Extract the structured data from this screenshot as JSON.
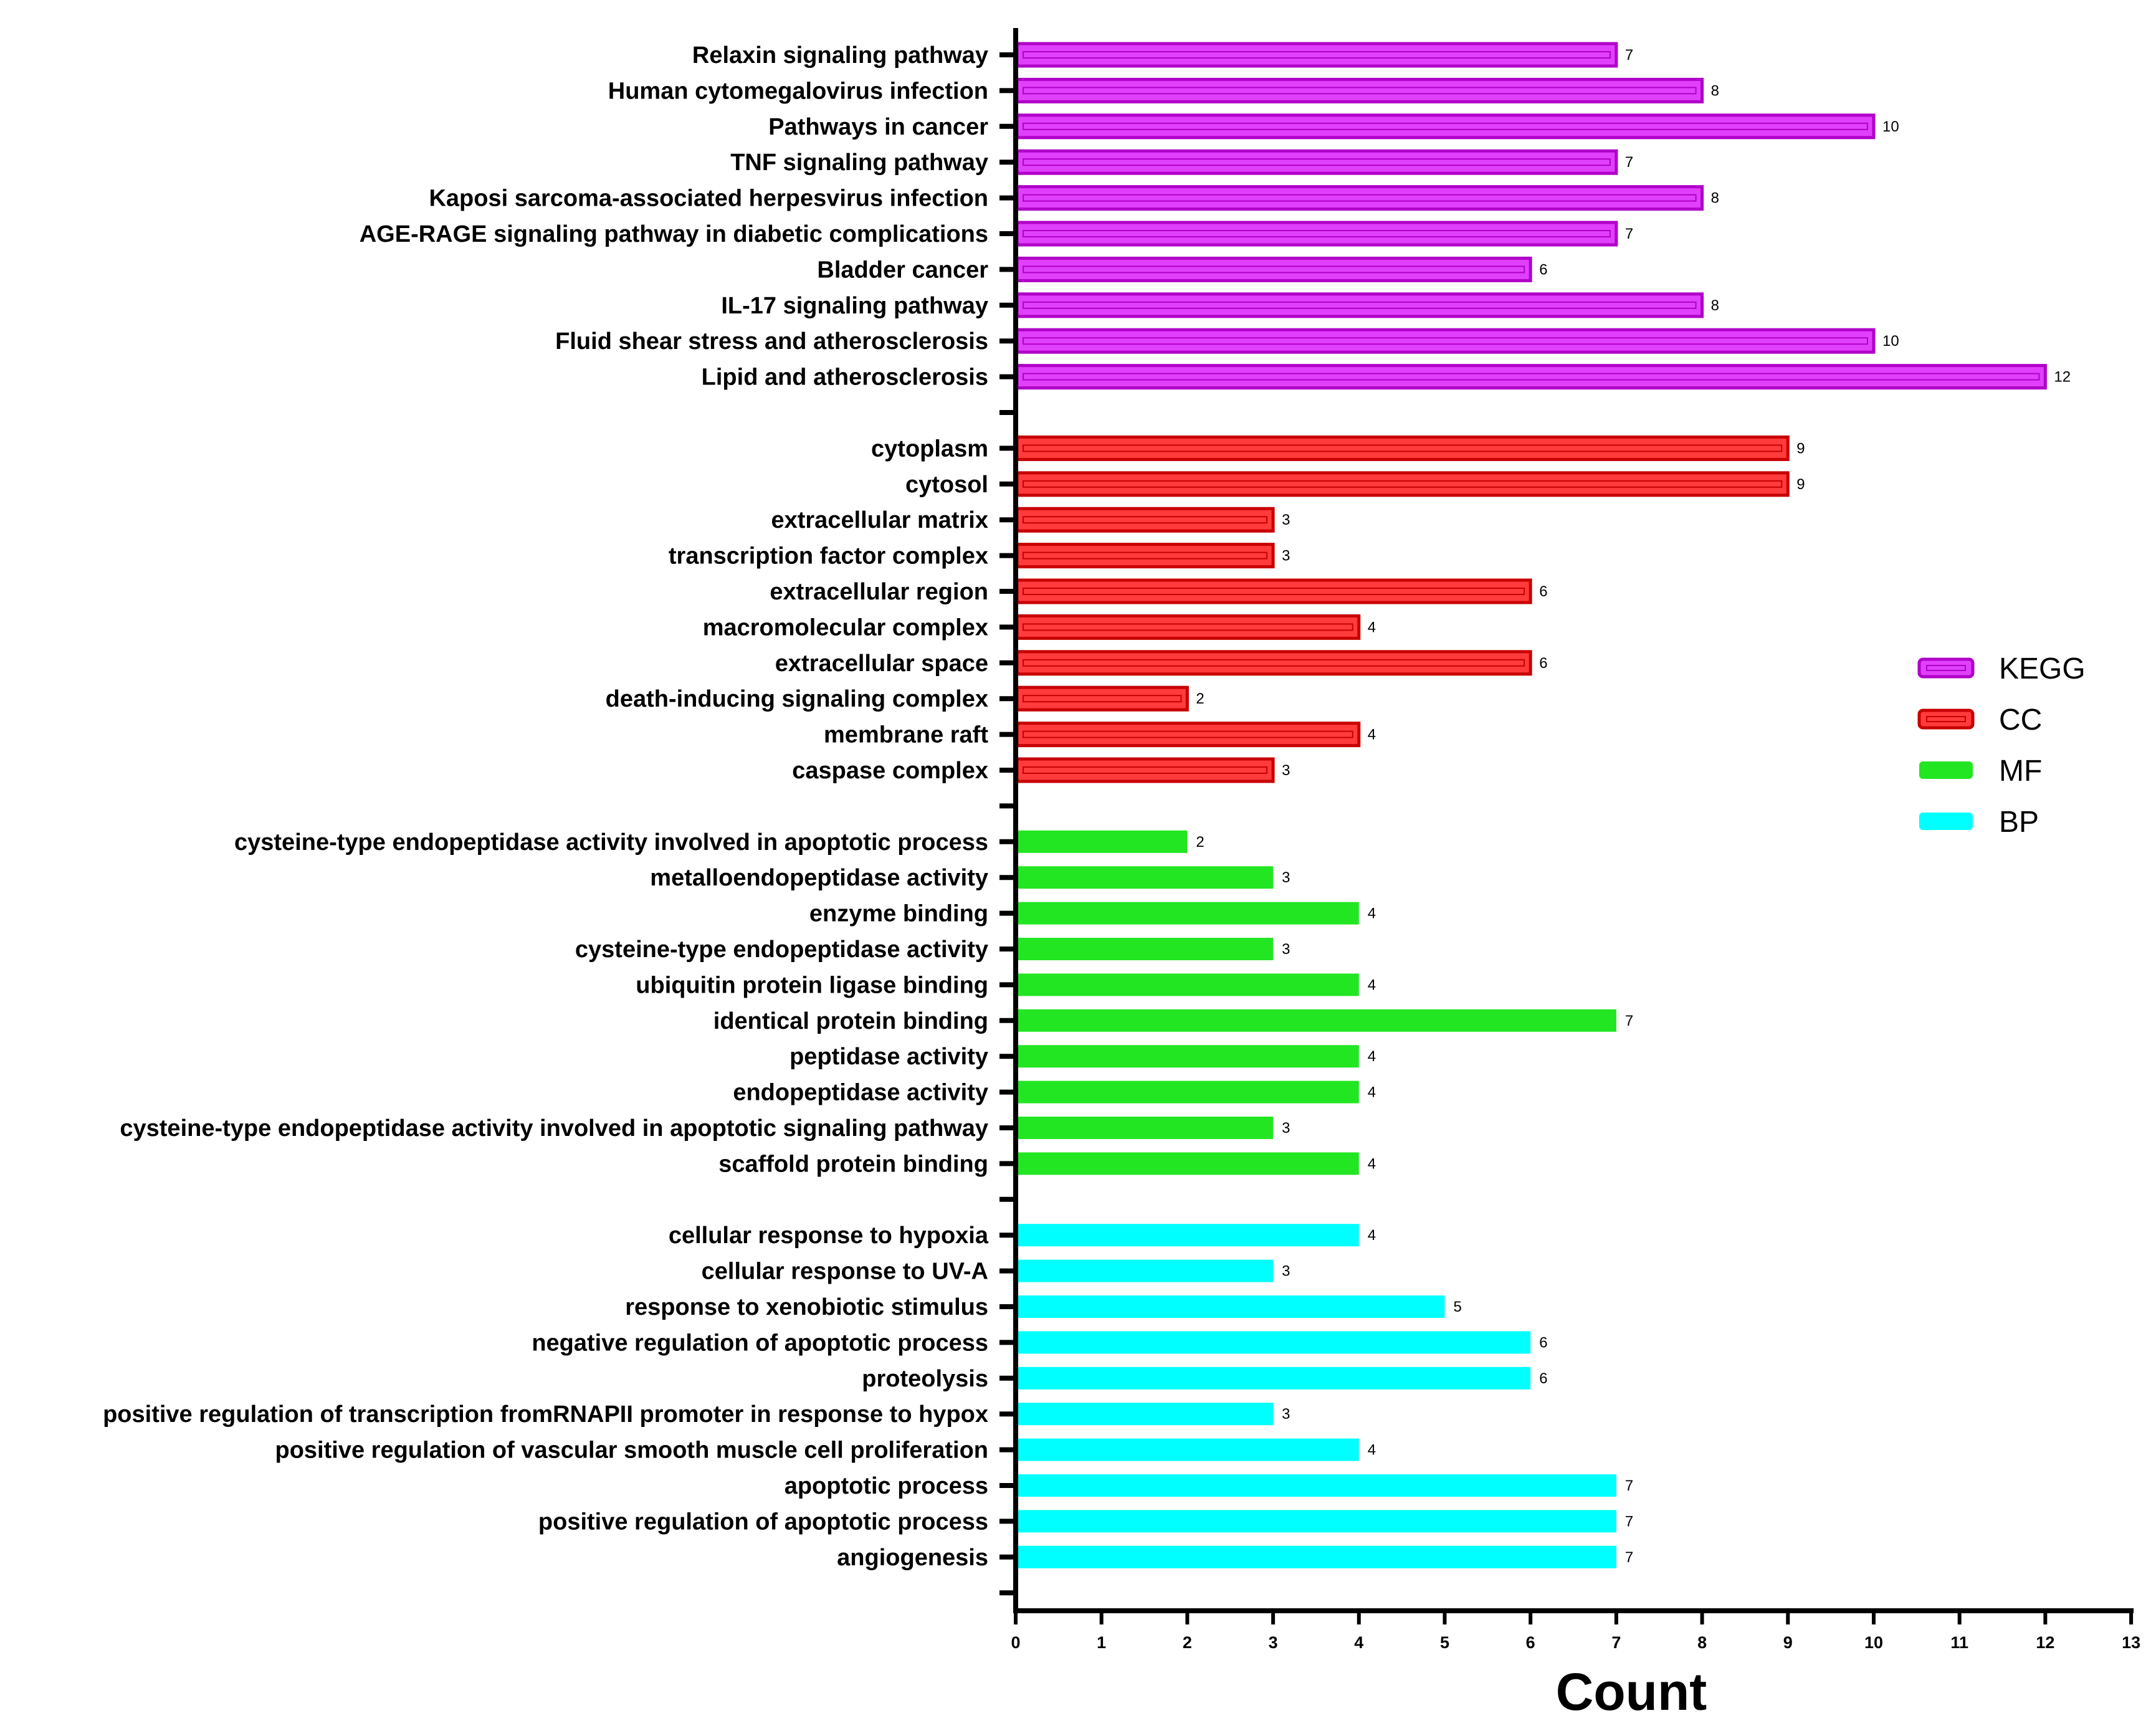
{
  "chart_data": {
    "type": "bar",
    "orientation": "horizontal",
    "xlabel": "Count",
    "xlim": [
      0,
      13
    ],
    "xticks": [
      0,
      1,
      2,
      3,
      4,
      5,
      6,
      7,
      8,
      9,
      10,
      11,
      12,
      13
    ],
    "legend_position": "right",
    "groups": [
      {
        "name": "KEGG",
        "color": "#e040fb",
        "border": "#b000c8",
        "style": "hollow",
        "categories": [
          "Relaxin signaling pathway",
          "Human cytomegalovirus infection",
          "Pathways in cancer",
          "TNF signaling pathway",
          "Kaposi sarcoma-associated herpesvirus infection",
          "AGE-RAGE signaling pathway in diabetic complications",
          "Bladder cancer",
          "IL-17 signaling pathway",
          "Fluid shear stress and atherosclerosis",
          "Lipid and atherosclerosis"
        ],
        "values": [
          7,
          8,
          10,
          7,
          8,
          7,
          6,
          8,
          10,
          12
        ]
      },
      {
        "name": "CC",
        "color": "#ff3b3b",
        "border": "#c80000",
        "style": "hollow",
        "categories": [
          "cytoplasm",
          "cytosol",
          "extracellular matrix",
          "transcription factor complex",
          "extracellular region",
          "macromolecular complex",
          "extracellular space",
          "death-inducing signaling complex",
          "membrane raft",
          "caspase complex"
        ],
        "values": [
          9,
          9,
          3,
          3,
          6,
          4,
          6,
          2,
          4,
          3
        ]
      },
      {
        "name": "MF",
        "color": "#22e622",
        "border": "#22e622",
        "style": "solid",
        "categories": [
          "cysteine-type endopeptidase activity involved in apoptotic process",
          "metalloendopeptidase activity",
          "enzyme binding",
          "cysteine-type endopeptidase activity",
          "ubiquitin protein ligase binding",
          "identical protein binding",
          "peptidase activity",
          "endopeptidase activity",
          "cysteine-type endopeptidase activity involved in apoptotic signaling pathway",
          "scaffold protein binding"
        ],
        "values": [
          2,
          3,
          4,
          3,
          4,
          7,
          4,
          4,
          3,
          4
        ]
      },
      {
        "name": "BP",
        "color": "#00ffff",
        "border": "#00ffff",
        "style": "solid",
        "categories": [
          "cellular response to hypoxia",
          "cellular response to UV-A",
          "response to xenobiotic stimulus",
          "negative regulation of apoptotic process",
          "proteolysis",
          "positive regulation of transcription fromRNAPII promoter in response to hypox",
          "positive regulation of vascular smooth muscle cell proliferation",
          "apoptotic process",
          "positive regulation of apoptotic process",
          "angiogenesis"
        ],
        "values": [
          4,
          3,
          5,
          6,
          6,
          3,
          4,
          7,
          7,
          7
        ]
      }
    ]
  }
}
